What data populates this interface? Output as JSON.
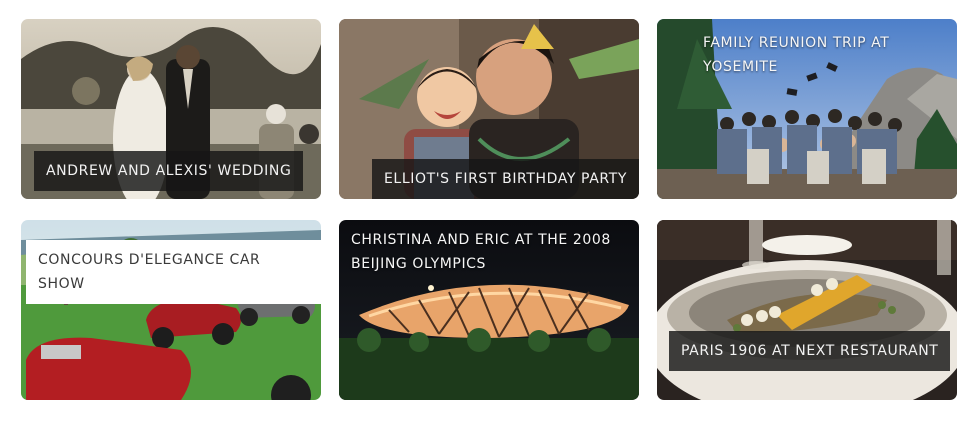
{
  "albums": [
    {
      "title": "ANDREW AND ALEXIS' WEDDING"
    },
    {
      "title": "ELLIOT'S FIRST BIRTHDAY PARTY"
    },
    {
      "title": "FAMILY REUNION TRIP AT YOSEMITE"
    },
    {
      "title": "CONCOURS D'ELEGANCE CAR SHOW"
    },
    {
      "title": "CHRISTINA AND ERIC AT THE 2008 BEIJING OLYMPICS"
    },
    {
      "title": "PARIS 1906 AT NEXT RESTAURANT"
    }
  ]
}
